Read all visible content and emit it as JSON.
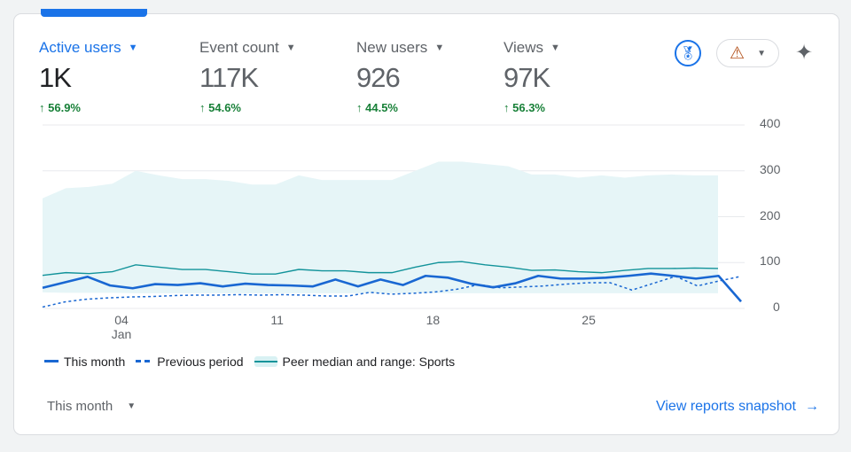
{
  "metrics": [
    {
      "label": "Active users",
      "value": "1K",
      "change": "56.9%",
      "active": true
    },
    {
      "label": "Event count",
      "value": "117K",
      "change": "54.6%"
    },
    {
      "label": "New users",
      "value": "926",
      "change": "44.5%"
    },
    {
      "label": "Views",
      "value": "97K",
      "change": "56.3%"
    }
  ],
  "icons": {
    "medal": "medal-icon",
    "warning": "warning-icon",
    "sparkle": "sparkle-icon",
    "arrow": "arrow-right-icon"
  },
  "chart_data": {
    "type": "line",
    "ylim": [
      0,
      400
    ],
    "yticks": [
      "400",
      "300",
      "200",
      "100",
      "0"
    ],
    "xticks": [
      {
        "label": "04",
        "sub": "Jan",
        "day": 4
      },
      {
        "label": "11",
        "day": 11
      },
      {
        "label": "18",
        "day": 18
      },
      {
        "label": "25",
        "day": 25
      }
    ],
    "series": [
      {
        "name": "This month",
        "color": "#1967d2",
        "values": [
          45,
          57,
          69,
          50,
          44,
          53,
          51,
          55,
          48,
          54,
          51,
          50,
          48,
          63,
          48,
          63,
          51,
          71,
          67,
          54,
          46,
          55,
          71,
          65,
          65,
          67,
          71,
          76,
          71,
          65,
          71,
          15
        ]
      },
      {
        "name": "Previous period",
        "color": "#1967d2",
        "dashed": true,
        "values": [
          3,
          14,
          20,
          23,
          25,
          26,
          28,
          29,
          29,
          30,
          29,
          30,
          29,
          27,
          27,
          35,
          31,
          33,
          36,
          42,
          52,
          45,
          47,
          49,
          53,
          56,
          56,
          40,
          55,
          70,
          49,
          60,
          70
        ]
      },
      {
        "name": "Peer median and range: Sports",
        "color": "#12939a",
        "values": [
          72,
          78,
          76,
          80,
          95,
          90,
          85,
          85,
          80,
          75,
          75,
          85,
          82,
          82,
          78,
          78,
          90,
          100,
          102,
          95,
          90,
          83,
          84,
          80,
          78,
          83,
          87,
          87,
          88,
          87
        ],
        "range_upper": [
          240,
          262,
          265,
          272,
          300,
          290,
          282,
          282,
          278,
          270,
          270,
          290,
          280,
          280,
          280,
          280,
          300,
          320,
          320,
          315,
          310,
          292,
          292,
          285,
          290,
          285,
          290,
          292,
          290,
          290
        ],
        "range_lower": [
          35,
          34,
          34,
          34,
          33,
          33,
          33,
          33,
          33,
          33,
          33,
          33,
          33,
          33,
          33,
          33,
          33,
          33,
          33,
          33,
          33,
          33,
          33,
          33,
          33,
          33,
          33,
          33,
          33,
          33
        ]
      }
    ]
  },
  "legend": [
    "This month",
    "Previous period",
    "Peer median and range: Sports"
  ],
  "footer": {
    "period": "This month",
    "link": "View reports snapshot"
  }
}
